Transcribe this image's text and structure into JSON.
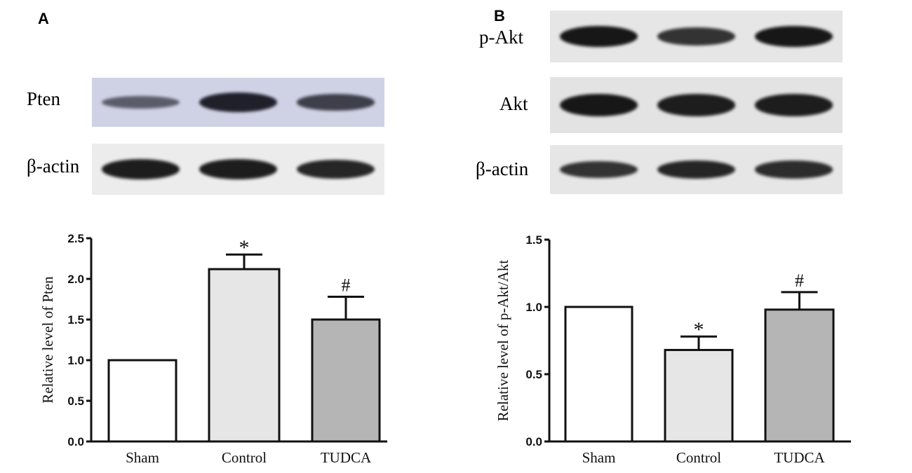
{
  "panels": [
    {
      "letter": "A",
      "blots": [
        {
          "label": "Pten",
          "bg": "#cfd2e4",
          "band_color": "#1b1b26",
          "intensities": [
            0.45,
            0.95,
            0.7
          ]
        },
        {
          "label": "β-actin",
          "bg": "#ececec",
          "band_color": "#111111",
          "intensities": [
            0.9,
            0.9,
            0.85
          ]
        }
      ]
    },
    {
      "letter": "B",
      "blots": [
        {
          "label": "p-Akt",
          "bg": "#e6e6e6",
          "band_color": "#111111",
          "intensities": [
            0.95,
            0.75,
            0.95
          ]
        },
        {
          "label": "Akt",
          "bg": "#e3e3e3",
          "band_color": "#111111",
          "intensities": [
            0.95,
            0.9,
            0.9
          ]
        },
        {
          "label": "β-actin",
          "bg": "#e6e6e6",
          "band_color": "#111111",
          "intensities": [
            0.75,
            0.85,
            0.8
          ]
        }
      ]
    }
  ],
  "chart_data": [
    {
      "type": "bar",
      "categories": [
        "Sham",
        "Control",
        "TUDCA"
      ],
      "values": [
        1.0,
        2.12,
        1.5
      ],
      "errors": [
        0,
        0.18,
        0.28
      ],
      "annotations": [
        "",
        "*",
        "#"
      ],
      "ylabel": "Relative level of Pten",
      "ylim": [
        0,
        2.5
      ],
      "yticks": [
        "0.0",
        "0.5",
        "1.0",
        "1.5",
        "2.0",
        "2.5"
      ],
      "bar_colors": [
        "#ffffff",
        "#e6e6e6",
        "#b5b5b5"
      ]
    },
    {
      "type": "bar",
      "categories": [
        "Sham",
        "Control",
        "TUDCA"
      ],
      "values": [
        1.0,
        0.68,
        0.98
      ],
      "errors": [
        0,
        0.1,
        0.13
      ],
      "annotations": [
        "",
        "*",
        "#"
      ],
      "ylabel": "Relative level of p-Akt/Akt",
      "ylim": [
        0,
        1.5
      ],
      "yticks": [
        "0.0",
        "0.5",
        "1.0",
        "1.5"
      ],
      "bar_colors": [
        "#ffffff",
        "#e6e6e6",
        "#b5b5b5"
      ]
    }
  ]
}
